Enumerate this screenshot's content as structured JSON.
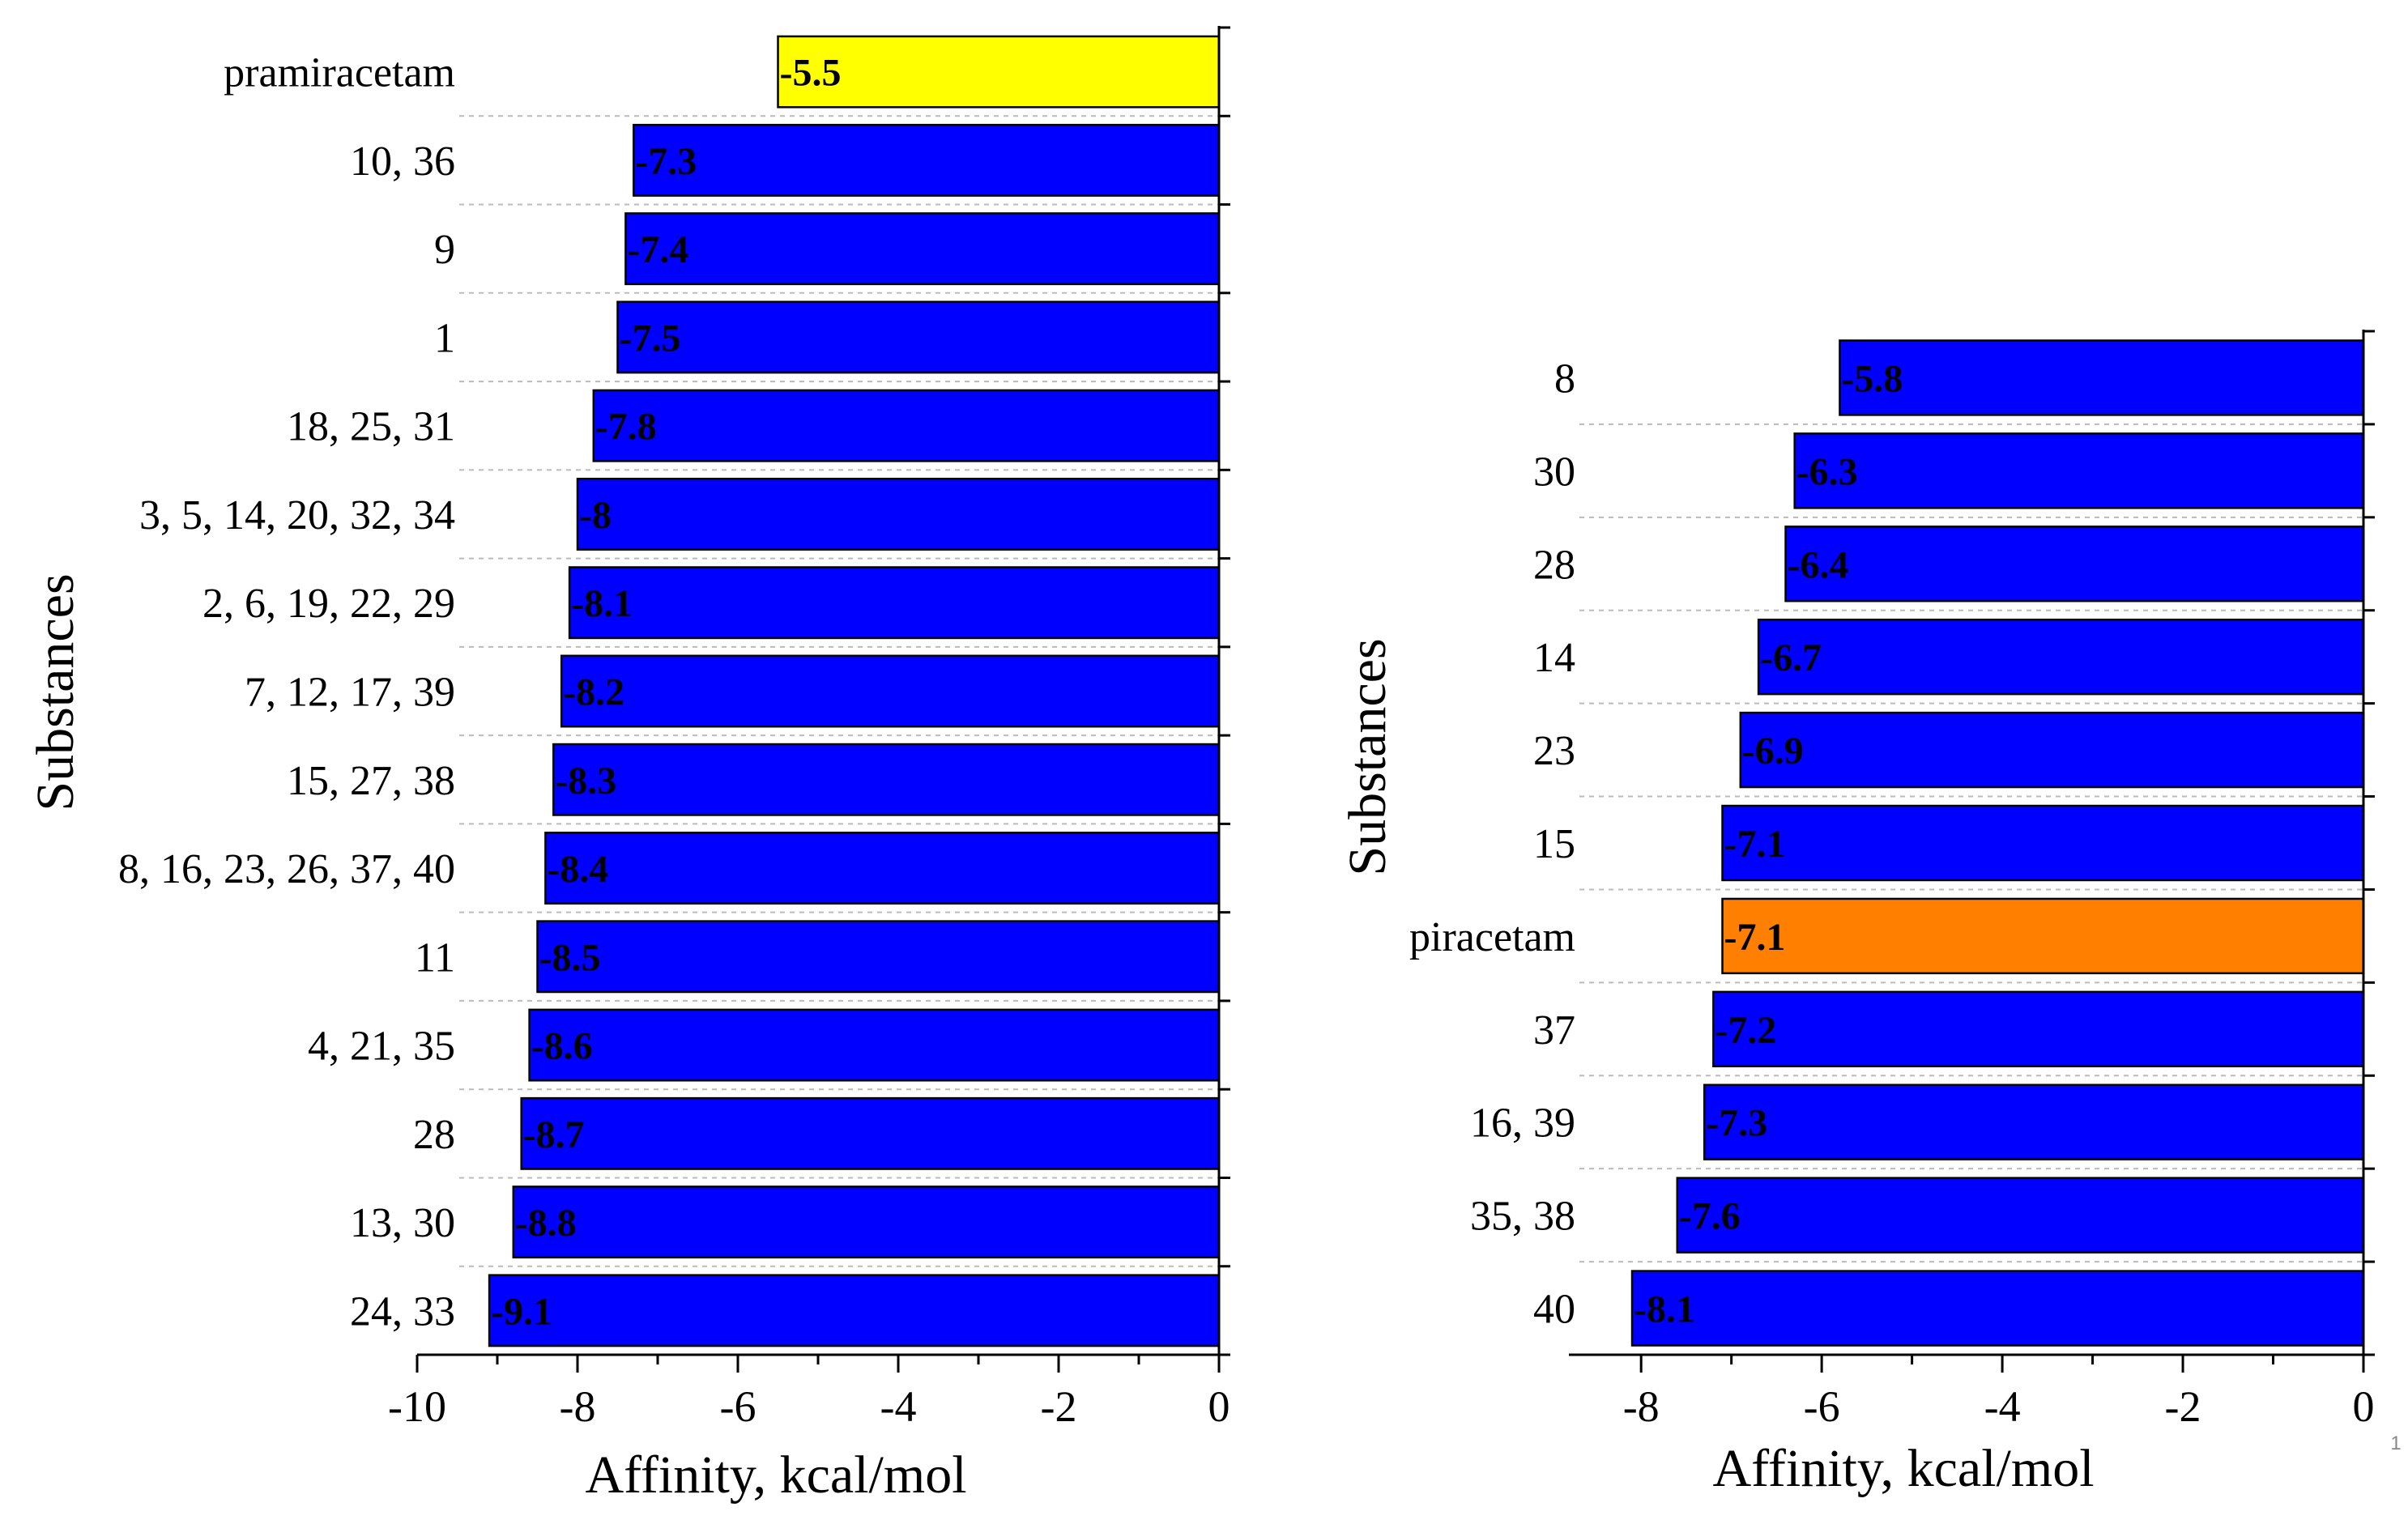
{
  "colors": {
    "blue": "#0000ff",
    "yellow": "#ffff00",
    "orange": "#ff8000",
    "grid": "#bbbbbb"
  },
  "page_number": "1",
  "chart_data": [
    {
      "type": "bar",
      "orientation": "horizontal",
      "xlabel": "Affinity, kcal/mol",
      "ylabel": "Substances",
      "xlim": [
        -10,
        0
      ],
      "xticks": [
        -10,
        -8,
        -6,
        -4,
        -2,
        0
      ],
      "xtick_labels": [
        "-10",
        "-8",
        "-6",
        "-4",
        "-2",
        "0"
      ],
      "grid": "horizontal dashed",
      "categories": [
        "pramiracetam",
        "10, 36",
        "9",
        "1",
        "18, 25, 31",
        "3, 5, 14, 20, 32, 34",
        "2, 6, 19, 22, 29",
        "7, 12, 17, 39",
        "15, 27, 38",
        "8, 16, 23, 26, 37, 40",
        "11",
        "4, 21, 35",
        "28",
        "13, 30",
        "24, 33"
      ],
      "values": [
        -5.5,
        -7.3,
        -7.4,
        -7.5,
        -7.8,
        -8,
        -8.1,
        -8.2,
        -8.3,
        -8.4,
        -8.5,
        -8.6,
        -8.7,
        -8.8,
        -9.1
      ],
      "value_labels": [
        "-5.5",
        "-7.3",
        "-7.4",
        "-7.5",
        "-7.8",
        "-8",
        "-8.1",
        "-8.2",
        "-8.3",
        "-8.4",
        "-8.5",
        "-8.6",
        "-8.7",
        "-8.8",
        "-9.1"
      ],
      "bar_colors": [
        "yellow",
        "blue",
        "blue",
        "blue",
        "blue",
        "blue",
        "blue",
        "blue",
        "blue",
        "blue",
        "blue",
        "blue",
        "blue",
        "blue",
        "blue"
      ]
    },
    {
      "type": "bar",
      "orientation": "horizontal",
      "xlabel": "Affinity, kcal/mol",
      "ylabel": "Substances",
      "xlim": [
        -8.8,
        0
      ],
      "xticks": [
        -8,
        -6,
        -4,
        -2,
        0
      ],
      "xtick_labels": [
        "-8",
        "-6",
        "-4",
        "-2",
        "0"
      ],
      "grid": "horizontal dashed",
      "categories": [
        "8",
        "30",
        "28",
        "14",
        "23",
        "15",
        "piracetam",
        "37",
        "16, 39",
        "35, 38",
        "40"
      ],
      "values": [
        -5.8,
        -6.3,
        -6.4,
        -6.7,
        -6.9,
        -7.1,
        -7.1,
        -7.2,
        -7.3,
        -7.6,
        -8.1
      ],
      "value_labels": [
        "-5.8",
        "-6.3",
        "-6.4",
        "-6.7",
        "-6.9",
        "-7.1",
        "-7.1",
        "-7.2",
        "-7.3",
        "-7.6",
        "-8.1"
      ],
      "bar_colors": [
        "blue",
        "blue",
        "blue",
        "blue",
        "blue",
        "blue",
        "orange",
        "blue",
        "blue",
        "blue",
        "blue"
      ]
    }
  ]
}
